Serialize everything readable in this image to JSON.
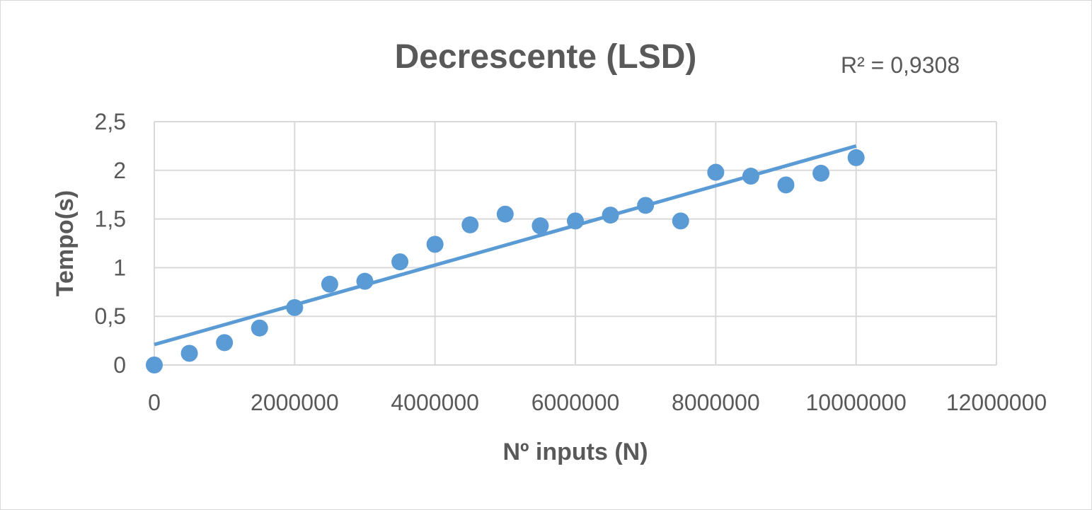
{
  "chart_data": {
    "type": "scatter",
    "title": "Decrescente (LSD)",
    "xlabel": "Nº inputs (N)",
    "ylabel": "Tempo(s)",
    "xlim": [
      0,
      12000000
    ],
    "ylim": [
      0,
      2.5
    ],
    "x_ticks": [
      "0",
      "2000000",
      "4000000",
      "6000000",
      "8000000",
      "10000000",
      "12000000"
    ],
    "y_ticks": [
      "0",
      "0,5",
      "1",
      "1,5",
      "2",
      "2,5"
    ],
    "grid": true,
    "series": [
      {
        "color": "#5b9bd5",
        "points": [
          [
            0,
            0.0
          ],
          [
            500000,
            0.12
          ],
          [
            1000000,
            0.23
          ],
          [
            1500000,
            0.38
          ],
          [
            2000000,
            0.59
          ],
          [
            2500000,
            0.83
          ],
          [
            3000000,
            0.86
          ],
          [
            3500000,
            1.06
          ],
          [
            4000000,
            1.24
          ],
          [
            4500000,
            1.44
          ],
          [
            5000000,
            1.55
          ],
          [
            5500000,
            1.43
          ],
          [
            6000000,
            1.48
          ],
          [
            6500000,
            1.54
          ],
          [
            7000000,
            1.64
          ],
          [
            7500000,
            1.48
          ],
          [
            8000000,
            1.98
          ],
          [
            8500000,
            1.94
          ],
          [
            9000000,
            1.85
          ],
          [
            9500000,
            1.97
          ],
          [
            10000000,
            2.13
          ]
        ]
      }
    ],
    "trendline": {
      "type": "linear",
      "x_range": [
        0,
        10000000
      ],
      "y_start": 0.21,
      "y_end": 2.25,
      "r2_label": "R² = 0,9308"
    }
  }
}
